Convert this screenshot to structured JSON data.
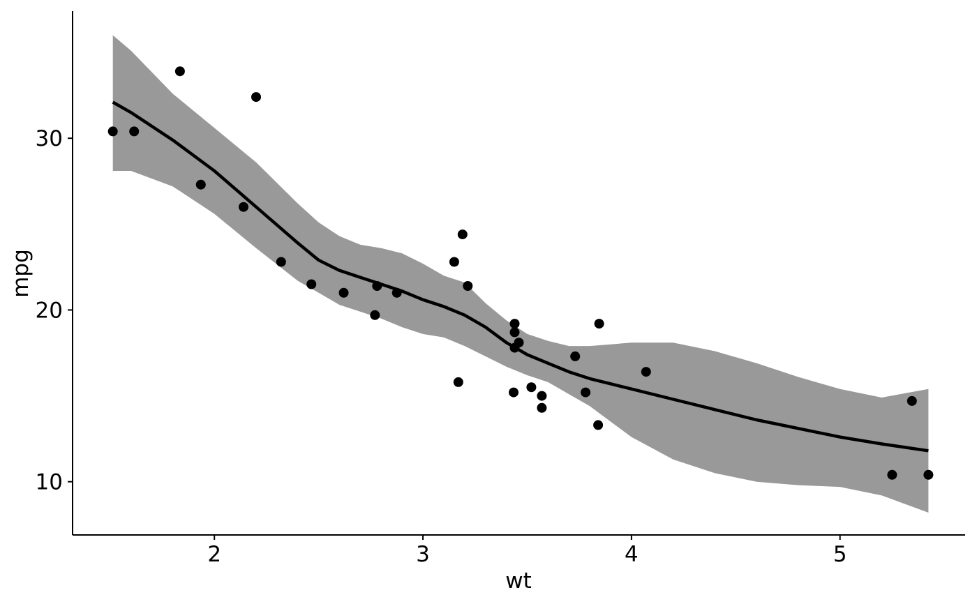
{
  "chart_data": {
    "type": "scatter",
    "xlabel": "wt",
    "ylabel": "mpg",
    "xlim": [
      1.32,
      5.6
    ],
    "ylim": [
      6.9,
      37.4
    ],
    "x_ticks": [
      "2",
      "3",
      "4",
      "5"
    ],
    "y_ticks": [
      "10",
      "20",
      "30"
    ],
    "grid": false,
    "points": {
      "x": [
        1.513,
        1.615,
        1.835,
        1.935,
        2.14,
        2.2,
        2.32,
        2.465,
        2.62,
        2.77,
        2.78,
        2.875,
        3.15,
        3.17,
        3.19,
        3.215,
        3.435,
        3.44,
        3.44,
        3.44,
        3.46,
        3.52,
        3.57,
        3.57,
        3.73,
        3.78,
        3.84,
        3.845,
        4.07,
        5.25,
        5.345,
        5.424
      ],
      "y": [
        30.4,
        30.4,
        33.9,
        27.3,
        26.0,
        32.4,
        22.8,
        21.5,
        21.0,
        19.7,
        21.4,
        21.0,
        22.8,
        15.8,
        24.4,
        21.4,
        15.2,
        19.2,
        18.7,
        17.8,
        18.1,
        15.5,
        15.0,
        14.3,
        17.3,
        15.2,
        13.3,
        19.2,
        16.4,
        10.4,
        14.7,
        10.4
      ]
    },
    "smooth": {
      "method": "loess",
      "x": [
        1.513,
        1.6,
        1.8,
        2.0,
        2.2,
        2.4,
        2.5,
        2.6,
        2.7,
        2.8,
        2.9,
        3.0,
        3.1,
        3.2,
        3.3,
        3.4,
        3.5,
        3.6,
        3.7,
        3.8,
        3.9,
        4.0,
        4.2,
        4.4,
        4.6,
        4.8,
        5.0,
        5.2,
        5.424
      ],
      "y": [
        32.1,
        31.5,
        29.9,
        28.1,
        26.0,
        23.9,
        22.9,
        22.3,
        21.9,
        21.5,
        21.1,
        20.6,
        20.2,
        19.7,
        19.0,
        18.1,
        17.4,
        16.9,
        16.4,
        16.0,
        15.7,
        15.4,
        14.8,
        14.2,
        13.6,
        13.1,
        12.6,
        12.2,
        11.8
      ],
      "ymin": [
        28.1,
        28.1,
        27.2,
        25.6,
        23.6,
        21.7,
        21.0,
        20.3,
        19.9,
        19.5,
        19.0,
        18.6,
        18.4,
        17.9,
        17.3,
        16.7,
        16.2,
        15.8,
        15.1,
        14.4,
        13.5,
        12.6,
        11.3,
        10.5,
        10.0,
        9.8,
        9.7,
        9.2,
        8.2
      ],
      "ymax": [
        36.0,
        35.1,
        32.6,
        30.6,
        28.6,
        26.2,
        25.1,
        24.3,
        23.8,
        23.6,
        23.3,
        22.7,
        22.0,
        21.6,
        20.4,
        19.4,
        18.6,
        18.2,
        17.9,
        17.9,
        18.0,
        18.1,
        18.1,
        17.6,
        16.9,
        16.1,
        15.4,
        14.9,
        15.4
      ]
    },
    "colors": {
      "points": "#000000",
      "line": "#000000",
      "ribbon": "#999999",
      "axis": "#000000",
      "background": "#ffffff"
    }
  }
}
